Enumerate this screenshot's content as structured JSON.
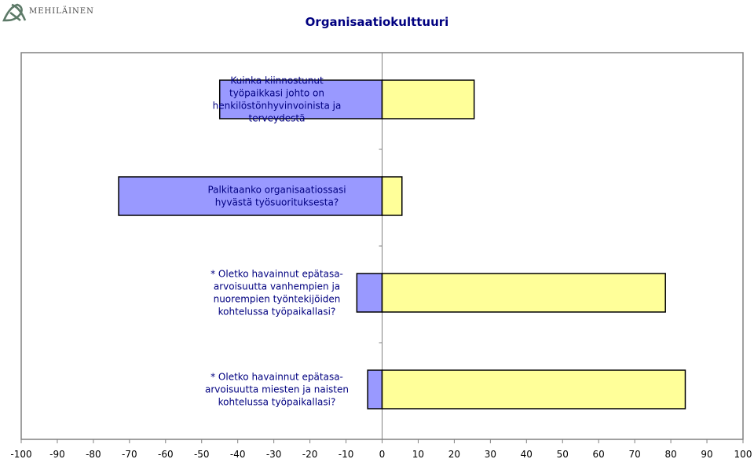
{
  "header": {
    "logo_text": "MEHILÄINEN",
    "logo_icon": "mehilainen-ribbon-logo"
  },
  "chart_data": {
    "type": "bar",
    "orientation": "horizontal",
    "stacked": "diverging",
    "title": "Organisaatiokulttuuri",
    "xlabel": "",
    "ylabel": "",
    "xlim": [
      -100,
      100
    ],
    "x_ticks": [
      "-100",
      "-90",
      "-80",
      "-70",
      "-60",
      "-50",
      "-40",
      "-30",
      "-20",
      "-10",
      "0",
      "10",
      "20",
      "30",
      "40",
      "50",
      "60",
      "70",
      "80",
      "90",
      "100"
    ],
    "grid": false,
    "legend": "none",
    "categories": [
      [
        "Kuinka kiinnostunut",
        "työpaikkasi johto on",
        "henkilöstönhyvinvoinista ja",
        "terveydestä"
      ],
      [
        "Palkitaanko organisaatiossasi",
        "hyvästä työsuorituksesta?"
      ],
      [
        "* Oletko havainnut epätasa-",
        "arvoisuutta vanhempien ja",
        "nuorempien työntekijöiden",
        "kohtelussa työpaikallasi?"
      ],
      [
        "* Oletko havainnut epätasa-",
        "arvoisuutta miesten ja naisten",
        "kohtelussa työpaikallasi?"
      ]
    ],
    "series": [
      {
        "values": [
          -45,
          -73,
          -7,
          -4
        ],
        "color": "#9999ff"
      },
      {
        "values": [
          25.5,
          5.5,
          78.5,
          84
        ],
        "color": "#ffff99"
      }
    ],
    "colors": {
      "plot_bg": "#ffffff",
      "plot_border": "#808080",
      "bar_stroke": "#000000",
      "title": "#000080",
      "category_text": "#000080"
    }
  }
}
